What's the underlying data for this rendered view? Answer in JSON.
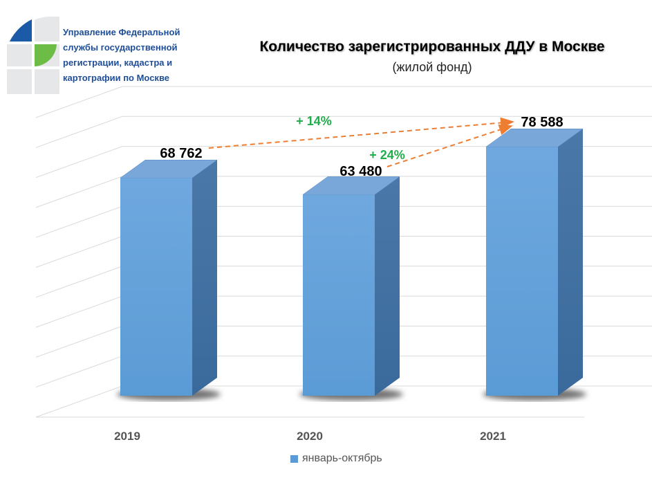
{
  "header": {
    "org_lines": [
      "Управление Федеральной",
      "службы государственной",
      "регистрации, кадастра и",
      "картографии по Москве"
    ]
  },
  "chart_data": {
    "type": "bar",
    "title": "Количество зарегистрированных ДДУ в Москве",
    "subtitle": "(жилой фонд)",
    "categories": [
      "2019",
      "2020",
      "2021"
    ],
    "series": [
      {
        "name": "январь-октябрь",
        "values": [
          68762,
          63480,
          78588
        ]
      }
    ],
    "data_labels": [
      "68 762",
      "63 480",
      "78 588"
    ],
    "ylim": [
      0,
      90000
    ],
    "grid": true,
    "legend": "bottom",
    "annotations": [
      {
        "text": "+ 14%",
        "from": "2019",
        "to": "2021"
      },
      {
        "text": "+ 24%",
        "from": "2020",
        "to": "2021"
      }
    ],
    "colors": {
      "bar_front": "#5b9bd5",
      "bar_side": "#3a6a9c",
      "bar_top": "#7aa7d9",
      "arrow": "#ed7d31",
      "annotation": "#1fae4b",
      "grid": "#d9d9d9"
    }
  }
}
